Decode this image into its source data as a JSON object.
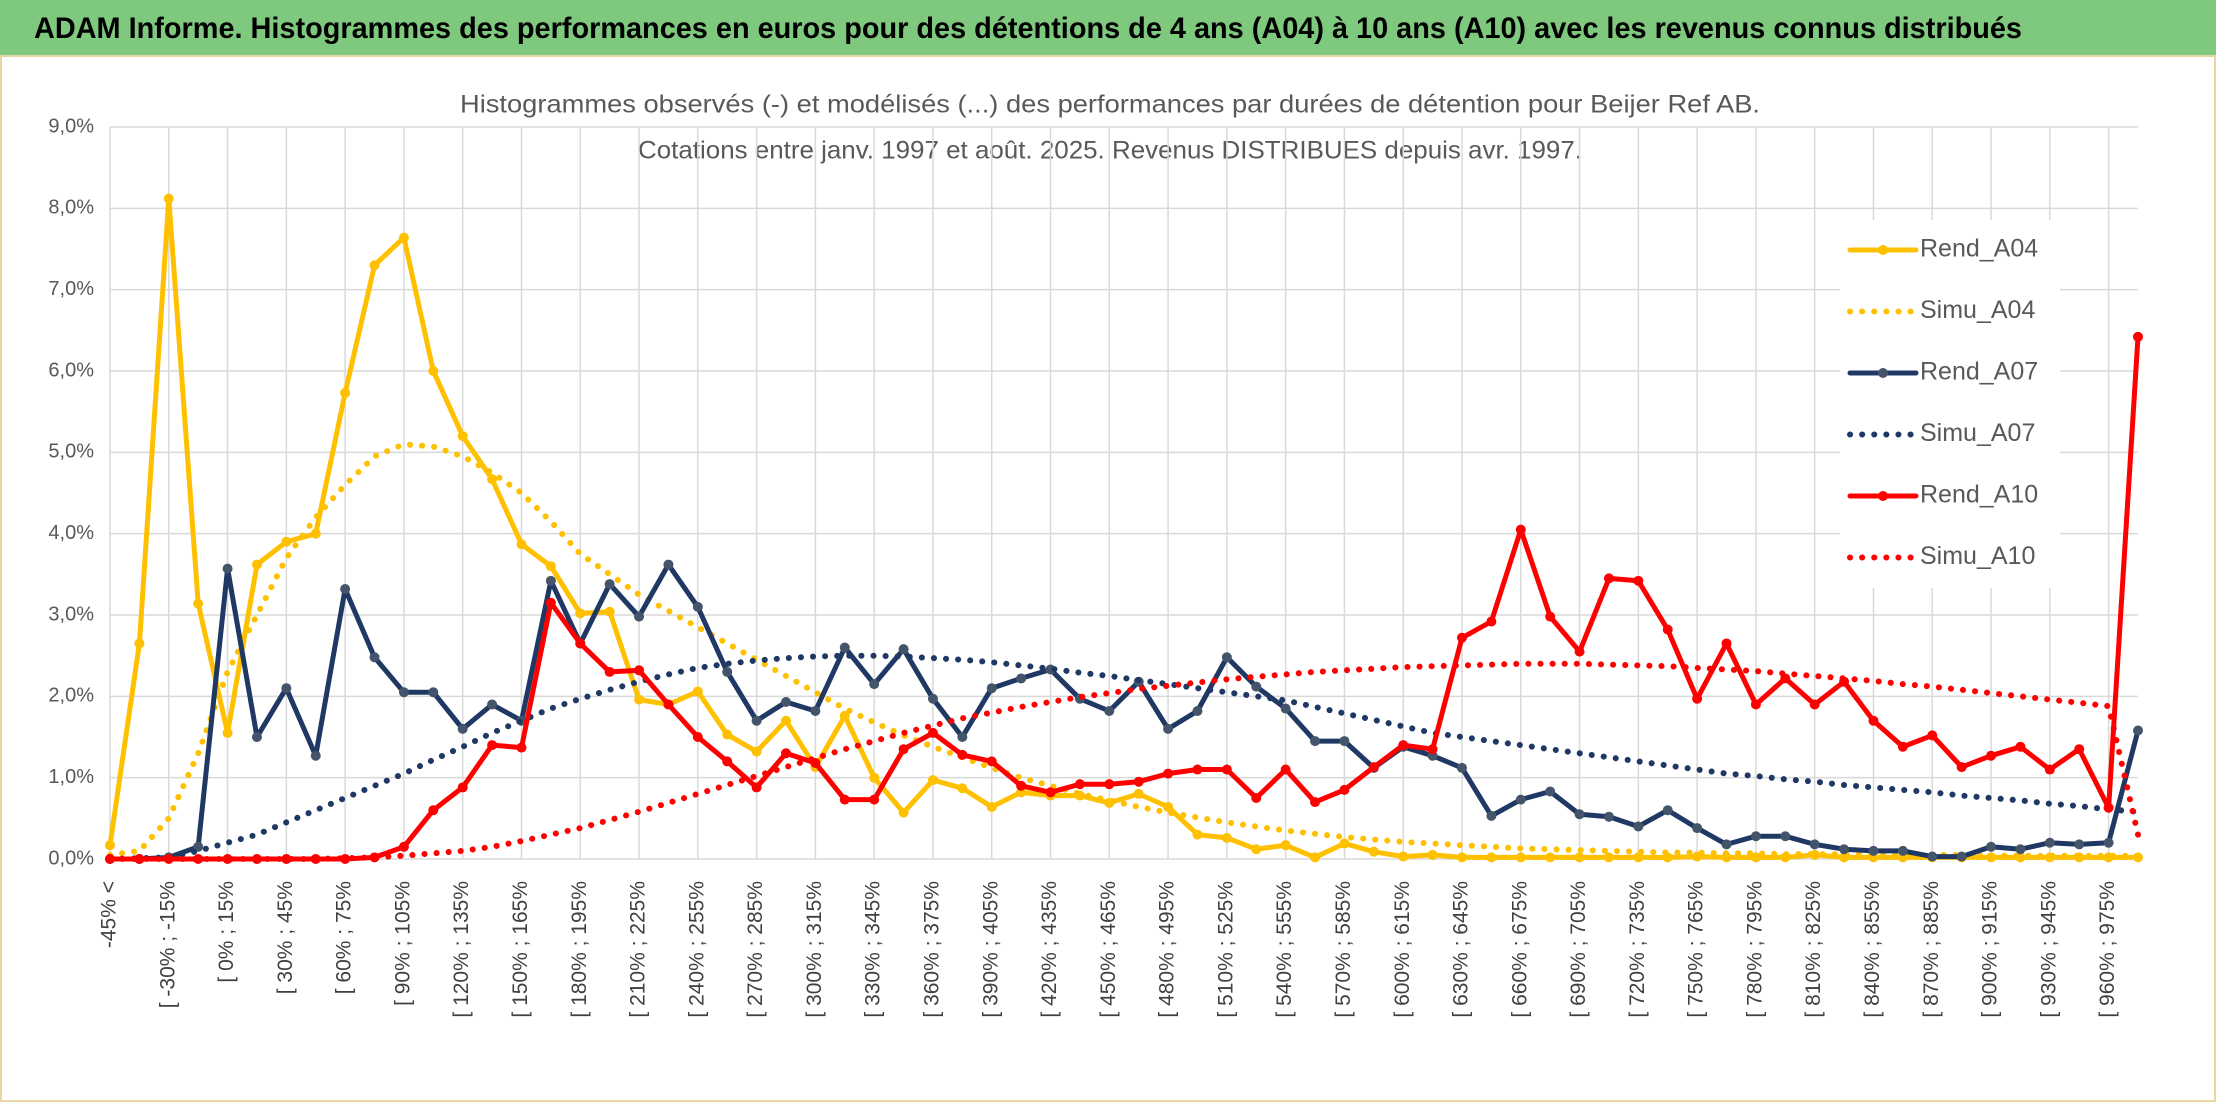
{
  "header_title": "ADAM Informe. Histogrammes des performances en euros pour des détentions de 4 ans (A04) à 10 ans (A10) avec les revenus connus distribués",
  "chart_data": {
    "type": "line",
    "title": "Histogrammes observés (-) et modélisés (...) des performances par durées de détention pour Beijer Ref AB.",
    "subtitle": "Cotations entre janv. 1997 et août. 2025. Revenus DISTRIBUES depuis avr. 1997.",
    "categories": [
      "-45% <",
      null,
      "[ -30% ; -15%",
      null,
      "[ 0% ; 15%",
      null,
      "[ 30% ; 45%",
      null,
      "[ 60% ; 75%",
      null,
      "[ 90% ; 105%",
      null,
      "[ 120% ; 135%",
      null,
      "[ 150% ; 165%",
      null,
      "[ 180% ; 195%",
      null,
      "[ 210% ; 225%",
      null,
      "[ 240% ; 255%",
      null,
      "[ 270% ; 285%",
      null,
      "[ 300% ; 315%",
      null,
      "[ 330% ; 345%",
      null,
      "[ 360% ; 375%",
      null,
      "[ 390% ; 405%",
      null,
      "[ 420% ; 435%",
      null,
      "[ 450% ; 465%",
      null,
      "[ 480% ; 495%",
      null,
      "[ 510% ; 525%",
      null,
      "[ 540% ; 555%",
      null,
      "[ 570% ; 585%",
      null,
      "[ 600% ; 615%",
      null,
      "[ 630% ; 645%",
      null,
      "[ 660% ; 675%",
      null,
      "[ 690% ; 705%",
      null,
      "[ 720% ; 735%",
      null,
      "[ 750% ; 765%",
      null,
      "[ 780% ; 795%",
      null,
      "[ 810% ; 825%",
      null,
      "[ 840% ; 855%",
      null,
      "[ 870% ; 885%",
      null,
      "[ 900% ; 915%",
      null,
      "[ 930% ; 945%",
      null,
      "[ 960% ; 975%",
      null
    ],
    "series": [
      {
        "name": "Rend_A04",
        "color": "#FFC000",
        "line_style": "solid",
        "markers": true,
        "values": [
          0.17,
          2.65,
          8.12,
          3.14,
          1.55,
          3.62,
          3.9,
          4.0,
          5.73,
          7.3,
          7.64,
          6.0,
          5.2,
          4.67,
          3.87,
          3.6,
          3.02,
          3.04,
          1.96,
          1.9,
          2.06,
          1.53,
          1.32,
          1.7,
          1.13,
          1.76,
          1.0,
          0.57,
          0.97,
          0.87,
          0.64,
          0.82,
          0.78,
          0.78,
          0.69,
          0.8,
          0.64,
          0.3,
          0.26,
          0.12,
          0.17,
          0.02,
          0.19,
          0.09,
          0.03,
          0.05,
          0.02,
          0.02,
          0.02,
          0.02,
          0.02,
          0.02,
          0.02,
          0.02,
          0.03,
          0.02,
          0.02,
          0.02,
          0.05,
          0.02,
          0.02,
          0.02,
          0.02,
          0.02,
          0.02,
          0.02,
          0.02,
          0.02,
          0.02,
          0.02
        ]
      },
      {
        "name": "Simu_A04",
        "color": "#FFC000",
        "line_style": "dotted",
        "markers": false,
        "values": [
          0.05,
          0.1,
          0.5,
          1.3,
          2.3,
          3.0,
          3.7,
          4.2,
          4.6,
          4.95,
          5.1,
          5.07,
          4.95,
          4.75,
          4.5,
          4.15,
          3.75,
          3.5,
          3.25,
          3.05,
          2.85,
          2.65,
          2.45,
          2.25,
          2.05,
          1.85,
          1.68,
          1.52,
          1.38,
          1.25,
          1.12,
          1.0,
          0.9,
          0.8,
          0.72,
          0.64,
          0.57,
          0.51,
          0.45,
          0.4,
          0.35,
          0.31,
          0.27,
          0.24,
          0.21,
          0.19,
          0.17,
          0.15,
          0.13,
          0.12,
          0.11,
          0.1,
          0.09,
          0.08,
          0.08,
          0.07,
          0.07,
          0.06,
          0.06,
          0.06,
          0.05,
          0.05,
          0.05,
          0.05,
          0.04,
          0.04,
          0.04,
          0.04,
          0.04,
          0.04
        ]
      },
      {
        "name": "Rend_A07",
        "color": "#1F3864",
        "line_style": "solid",
        "markers": true,
        "values": [
          0,
          0,
          0.02,
          0.15,
          3.57,
          1.5,
          2.1,
          1.27,
          3.32,
          2.48,
          2.05,
          2.05,
          1.6,
          1.9,
          1.7,
          3.42,
          2.65,
          3.38,
          2.98,
          3.62,
          3.1,
          2.3,
          1.7,
          1.93,
          1.82,
          2.6,
          2.15,
          2.58,
          1.97,
          1.5,
          2.1,
          2.22,
          2.33,
          1.97,
          1.82,
          2.18,
          1.6,
          1.82,
          2.48,
          2.12,
          1.85,
          1.45,
          1.45,
          1.12,
          1.38,
          1.27,
          1.12,
          0.53,
          0.73,
          0.83,
          0.55,
          0.52,
          0.4,
          0.6,
          0.38,
          0.18,
          0.28,
          0.28,
          0.18,
          0.12,
          0.1,
          0.1,
          0.03,
          0.03,
          0.15,
          0.12,
          0.2,
          0.18,
          0.2,
          1.58
        ]
      },
      {
        "name": "Simu_A07",
        "color": "#1F3864",
        "line_style": "dotted",
        "markers": false,
        "values": [
          0,
          0.01,
          0.02,
          0.1,
          0.2,
          0.3,
          0.45,
          0.6,
          0.75,
          0.9,
          1.05,
          1.22,
          1.38,
          1.55,
          1.7,
          1.85,
          1.97,
          2.08,
          2.18,
          2.27,
          2.35,
          2.4,
          2.44,
          2.47,
          2.49,
          2.5,
          2.5,
          2.49,
          2.47,
          2.45,
          2.42,
          2.38,
          2.34,
          2.29,
          2.25,
          2.2,
          2.15,
          2.1,
          2.05,
          2.0,
          1.95,
          1.87,
          1.79,
          1.71,
          1.63,
          1.55,
          1.5,
          1.45,
          1.4,
          1.35,
          1.3,
          1.25,
          1.2,
          1.15,
          1.1,
          1.05,
          1.02,
          0.98,
          0.95,
          0.91,
          0.88,
          0.85,
          0.82,
          0.78,
          0.75,
          0.72,
          0.68,
          0.65,
          0.61,
          0.58
        ]
      },
      {
        "name": "Rend_A10",
        "color": "#FF0000",
        "line_style": "solid",
        "markers": true,
        "values": [
          0,
          0,
          0,
          0,
          0,
          0,
          0,
          0,
          0,
          0.02,
          0.15,
          0.6,
          0.88,
          1.4,
          1.37,
          3.15,
          2.65,
          2.3,
          2.32,
          1.9,
          1.5,
          1.2,
          0.88,
          1.3,
          1.18,
          0.73,
          0.73,
          1.35,
          1.55,
          1.28,
          1.2,
          0.9,
          0.82,
          0.92,
          0.92,
          0.95,
          1.05,
          1.1,
          1.1,
          0.75,
          1.1,
          0.7,
          0.85,
          1.13,
          1.4,
          1.35,
          2.72,
          2.92,
          4.05,
          2.98,
          2.55,
          3.45,
          3.42,
          2.82,
          1.97,
          2.65,
          1.9,
          2.22,
          1.9,
          2.18,
          1.7,
          1.38,
          1.52,
          1.13,
          1.27,
          1.38,
          1.1,
          1.35,
          0.63,
          6.42
        ]
      },
      {
        "name": "Simu_A10",
        "color": "#FF0000",
        "line_style": "dotted",
        "markers": false,
        "values": [
          0,
          0,
          0,
          0,
          0,
          0,
          0,
          0,
          0.01,
          0.02,
          0.04,
          0.07,
          0.1,
          0.15,
          0.22,
          0.3,
          0.38,
          0.48,
          0.58,
          0.69,
          0.8,
          0.91,
          1.02,
          1.13,
          1.24,
          1.35,
          1.45,
          1.55,
          1.64,
          1.73,
          1.8,
          1.87,
          1.93,
          1.99,
          2.04,
          2.09,
          2.13,
          2.17,
          2.21,
          2.24,
          2.27,
          2.3,
          2.32,
          2.34,
          2.36,
          2.37,
          2.38,
          2.39,
          2.4,
          2.4,
          2.4,
          2.39,
          2.38,
          2.37,
          2.35,
          2.33,
          2.31,
          2.28,
          2.25,
          2.22,
          2.19,
          2.15,
          2.12,
          2.08,
          2.04,
          2.0,
          1.96,
          1.92,
          1.88,
          0.3
        ]
      }
    ],
    "ylim": [
      0,
      9
    ],
    "yticks": [
      {
        "value": 0,
        "label": "0,0%"
      },
      {
        "value": 1,
        "label": "1,0%"
      },
      {
        "value": 2,
        "label": "2,0%"
      },
      {
        "value": 3,
        "label": "3,0%"
      },
      {
        "value": 4,
        "label": "4,0%"
      },
      {
        "value": 5,
        "label": "5,0%"
      },
      {
        "value": 6,
        "label": "6,0%"
      },
      {
        "value": 7,
        "label": "7,0%"
      },
      {
        "value": 8,
        "label": "8,0%"
      },
      {
        "value": 9,
        "label": "9,0%"
      }
    ],
    "grid": true,
    "legend": "right"
  }
}
